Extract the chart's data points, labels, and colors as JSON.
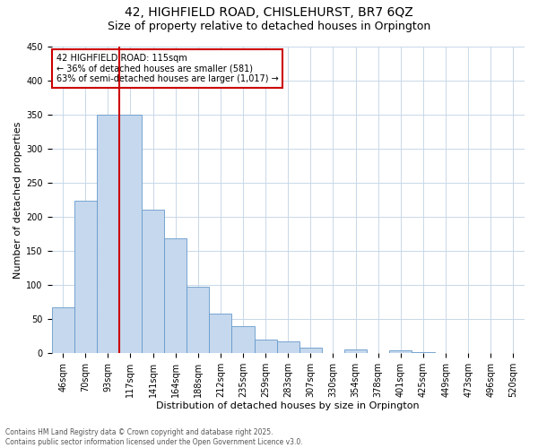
{
  "title": "42, HIGHFIELD ROAD, CHISLEHURST, BR7 6QZ",
  "subtitle": "Size of property relative to detached houses in Orpington",
  "xlabel": "Distribution of detached houses by size in Orpington",
  "ylabel": "Number of detached properties",
  "categories": [
    "46sqm",
    "70sqm",
    "93sqm",
    "117sqm",
    "141sqm",
    "164sqm",
    "188sqm",
    "212sqm",
    "235sqm",
    "259sqm",
    "283sqm",
    "307sqm",
    "330sqm",
    "354sqm",
    "378sqm",
    "401sqm",
    "425sqm",
    "449sqm",
    "473sqm",
    "496sqm",
    "520sqm"
  ],
  "values": [
    67,
    224,
    350,
    350,
    210,
    168,
    98,
    58,
    40,
    20,
    17,
    8,
    0,
    6,
    0,
    4,
    1,
    0,
    0,
    0,
    0
  ],
  "bar_color": "#c5d8ed",
  "bar_edge_color": "#6699cc",
  "vline_x": 2.5,
  "vline_color": "#cc0000",
  "annotation_line1": "42 HIGHFIELD ROAD: 115sqm",
  "annotation_line2": "← 36% of detached houses are smaller (581)",
  "annotation_line3": "63% of semi-detached houses are larger (1,017) →",
  "annotation_box_edgecolor": "#cc0000",
  "ylim": [
    0,
    450
  ],
  "yticks": [
    0,
    50,
    100,
    150,
    200,
    250,
    300,
    350,
    400,
    450
  ],
  "background_color": "#ffffff",
  "grid_color": "#c8d8e8",
  "footnote1": "Contains HM Land Registry data © Crown copyright and database right 2025.",
  "footnote2": "Contains public sector information licensed under the Open Government Licence v3.0.",
  "title_fontsize": 10,
  "subtitle_fontsize": 9,
  "xlabel_fontsize": 8,
  "ylabel_fontsize": 8,
  "tick_fontsize": 7,
  "annotation_fontsize": 7,
  "footnote_fontsize": 5.5
}
